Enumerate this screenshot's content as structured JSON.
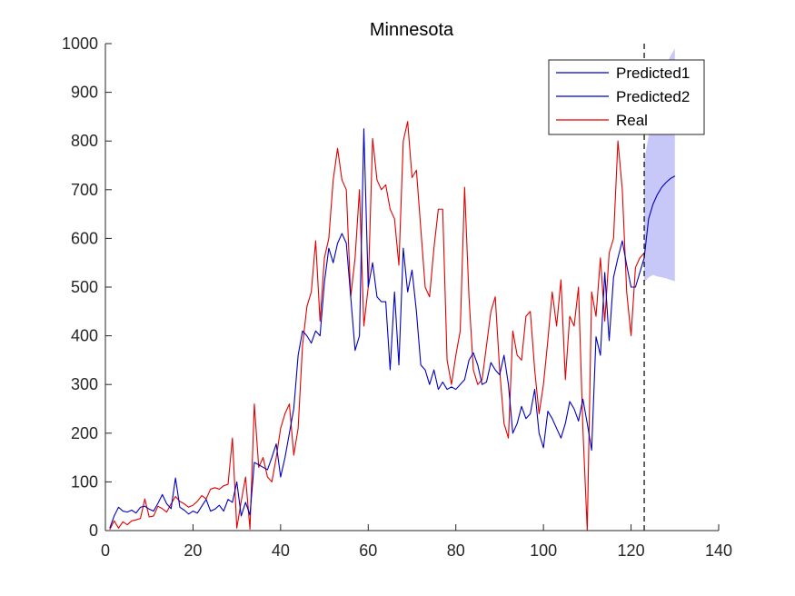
{
  "chart_data": {
    "type": "line",
    "title": "Minnesota",
    "xlabel": "",
    "ylabel": "",
    "xlim": [
      0,
      140
    ],
    "ylim": [
      0,
      1000
    ],
    "xticks": [
      0,
      20,
      40,
      60,
      80,
      100,
      120,
      140
    ],
    "yticks": [
      0,
      100,
      200,
      300,
      400,
      500,
      600,
      700,
      800,
      900,
      1000
    ],
    "grid": false,
    "legend_position": "top-right",
    "colors": {
      "predicted": "#0000c0",
      "real": "#e00000",
      "band": "#c8c8f8",
      "vline": "#000000"
    },
    "vline_x": 123,
    "series": [
      {
        "name": "Predicted1",
        "x": [
          1,
          2,
          3,
          4,
          5,
          6,
          7,
          8,
          9,
          10,
          11,
          12,
          13,
          14,
          15,
          16,
          17,
          18,
          19,
          20,
          21,
          22,
          23,
          24,
          25,
          26,
          27,
          28,
          29,
          30,
          31,
          32,
          33,
          34,
          35,
          36,
          37,
          38,
          39,
          40,
          41,
          42,
          43,
          44,
          45,
          46,
          47,
          48,
          49,
          50,
          51,
          52,
          53,
          54,
          55,
          56,
          57,
          58,
          59,
          60,
          61,
          62,
          63,
          64,
          65,
          66,
          67,
          68,
          69,
          70,
          71,
          72,
          73,
          74,
          75,
          76,
          77,
          78,
          79,
          80,
          81,
          82,
          83,
          84,
          85,
          86,
          87,
          88,
          89,
          90,
          91,
          92,
          93,
          94,
          95,
          96,
          97,
          98,
          99,
          100,
          101,
          102,
          103,
          104,
          105,
          106,
          107,
          108,
          109,
          110,
          111,
          112,
          113,
          114,
          115,
          116,
          117,
          118,
          119,
          120,
          121,
          122,
          123
        ],
        "values": [
          5,
          30,
          48,
          40,
          38,
          42,
          36,
          48,
          50,
          44,
          40,
          56,
          74,
          55,
          45,
          108,
          48,
          42,
          34,
          40,
          36,
          50,
          64,
          40,
          44,
          52,
          40,
          64,
          58,
          100,
          30,
          58,
          32,
          140,
          135,
          130,
          125,
          150,
          178,
          110,
          150,
          200,
          250,
          360,
          410,
          400,
          385,
          410,
          400,
          510,
          580,
          550,
          590,
          610,
          590,
          480,
          370,
          400,
          825,
          500,
          550,
          480,
          470,
          470,
          330,
          490,
          340,
          580,
          490,
          535,
          450,
          340,
          330,
          300,
          330,
          290,
          305,
          290,
          295,
          290,
          300,
          310,
          350,
          365,
          340,
          300,
          305,
          345,
          330,
          320,
          360,
          300,
          200,
          220,
          255,
          230,
          240,
          290,
          200,
          170,
          245,
          230,
          210,
          190,
          220,
          265,
          250,
          225,
          270,
          220,
          165,
          398,
          360,
          530,
          390,
          520,
          560,
          595,
          545,
          500,
          500,
          530,
          560
        ]
      },
      {
        "name": "Predicted2",
        "x": [
          123,
          124,
          125,
          126,
          127,
          128,
          129,
          130
        ],
        "values": [
          560,
          640,
          670,
          690,
          705,
          715,
          723,
          728
        ],
        "band_lower": [
          510,
          520,
          525,
          522,
          520,
          518,
          515,
          512
        ],
        "band_upper": [
          760,
          810,
          860,
          900,
          930,
          955,
          975,
          990
        ]
      },
      {
        "name": "Real",
        "x": [
          1,
          2,
          3,
          4,
          5,
          6,
          7,
          8,
          9,
          10,
          11,
          12,
          13,
          14,
          15,
          16,
          17,
          18,
          19,
          20,
          21,
          22,
          23,
          24,
          25,
          26,
          27,
          28,
          29,
          30,
          31,
          32,
          33,
          34,
          35,
          36,
          37,
          38,
          39,
          40,
          41,
          42,
          43,
          44,
          45,
          46,
          47,
          48,
          49,
          50,
          51,
          52,
          53,
          54,
          55,
          56,
          57,
          58,
          59,
          60,
          61,
          62,
          63,
          64,
          65,
          66,
          67,
          68,
          69,
          70,
          71,
          72,
          73,
          74,
          75,
          76,
          77,
          78,
          79,
          80,
          81,
          82,
          83,
          84,
          85,
          86,
          87,
          88,
          89,
          90,
          91,
          92,
          93,
          94,
          95,
          96,
          97,
          98,
          99,
          100,
          101,
          102,
          103,
          104,
          105,
          106,
          107,
          108,
          109,
          110,
          111,
          112,
          113,
          114,
          115,
          116,
          117,
          118,
          119,
          120,
          121,
          122,
          123
        ],
        "values": [
          2,
          20,
          5,
          18,
          12,
          20,
          22,
          25,
          65,
          28,
          30,
          50,
          45,
          38,
          55,
          70,
          60,
          55,
          48,
          52,
          60,
          72,
          65,
          85,
          88,
          85,
          92,
          95,
          190,
          5,
          60,
          110,
          3,
          260,
          130,
          150,
          110,
          100,
          150,
          210,
          240,
          260,
          155,
          210,
          380,
          460,
          490,
          595,
          430,
          560,
          600,
          720,
          785,
          720,
          700,
          480,
          560,
          700,
          420,
          500,
          805,
          720,
          700,
          710,
          660,
          640,
          545,
          800,
          840,
          725,
          740,
          620,
          500,
          480,
          580,
          660,
          660,
          350,
          300,
          360,
          410,
          705,
          480,
          330,
          300,
          310,
          380,
          450,
          480,
          330,
          220,
          190,
          410,
          360,
          350,
          440,
          450,
          330,
          240,
          300,
          390,
          490,
          420,
          515,
          310,
          440,
          420,
          500,
          210,
          0,
          490,
          440,
          560,
          430,
          570,
          600,
          800,
          700,
          490,
          400,
          540,
          560,
          570
        ]
      }
    ]
  }
}
